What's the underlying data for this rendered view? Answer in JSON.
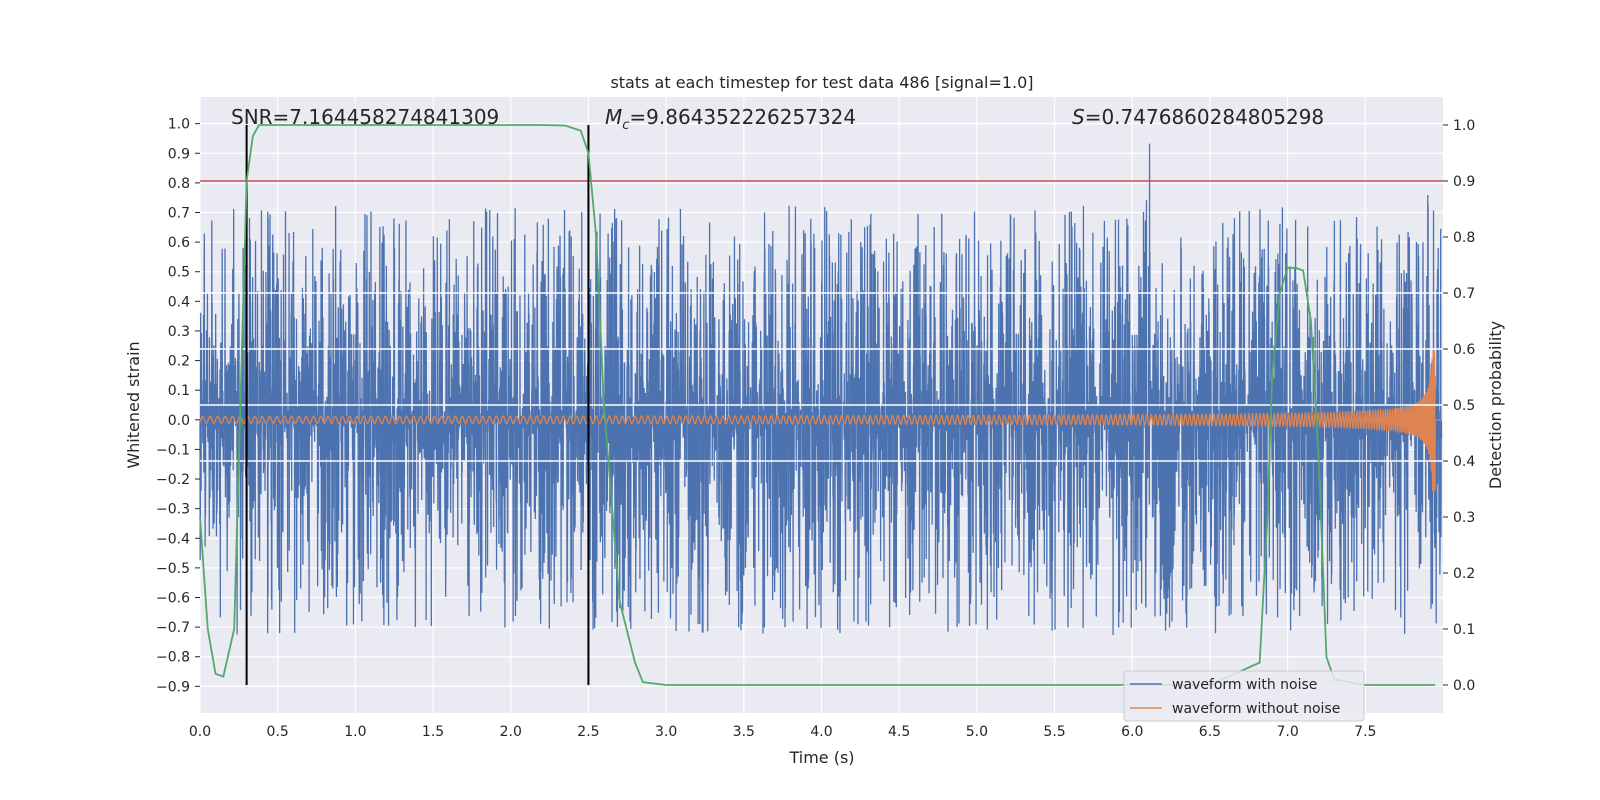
{
  "chart_data": {
    "type": "line",
    "title": "stats at each timestep for test data 486 [signal=1.0]",
    "xlabel": "Time (s)",
    "ylabel_left": "Whitened strain",
    "ylabel_right": "Detection probability",
    "xlim": [
      0.0,
      8.0
    ],
    "ylim_left": [
      -0.99,
      1.09
    ],
    "ylim_right": [
      -0.05,
      1.05
    ],
    "x_ticks": [
      "0.0",
      "0.5",
      "1.0",
      "1.5",
      "2.0",
      "2.5",
      "3.0",
      "3.5",
      "4.0",
      "4.5",
      "5.0",
      "5.5",
      "6.0",
      "6.5",
      "7.0",
      "7.5"
    ],
    "y_left_ticks": [
      "1.0",
      "0.9",
      "0.8",
      "0.7",
      "0.6",
      "0.5",
      "0.4",
      "0.3",
      "0.2",
      "0.1",
      "0.0",
      "-0.1",
      "-0.2",
      "-0.3",
      "-0.4",
      "-0.5",
      "-0.6",
      "-0.7",
      "-0.8",
      "-0.9"
    ],
    "y_right_ticks": [
      "1.0",
      "0.9",
      "0.8",
      "0.7",
      "0.6",
      "0.5",
      "0.4",
      "0.3",
      "0.2",
      "0.1",
      "0.0"
    ],
    "grid": true,
    "annotations": {
      "snr": "SNR=7.164458274841309",
      "mc_symbol": "M",
      "mc_sub": "c",
      "mc_value": "=9.864352226257324",
      "s_symbol": "S",
      "s_value": "=0.7476860284805298"
    },
    "threshold_probability": 0.9,
    "vertical_lines_s": [
      0.3,
      2.5
    ],
    "legend": {
      "position": "lower-right",
      "entries": [
        "waveform with noise",
        "waveform without noise"
      ]
    },
    "series": [
      {
        "name": "waveform with noise",
        "color": "#4c72b0",
        "axis": "left",
        "description": "whitened noisy strain, amplitude mostly within about ±0.6 with peaks near ±0.95"
      },
      {
        "name": "waveform without noise",
        "color": "#dd8452",
        "axis": "left",
        "description": "chirp signal, amplitude growing from ~0.01 to ~0.24 before merger near 7.95 s"
      },
      {
        "name": "detection probability",
        "color": "#55a868",
        "axis": "right",
        "x": [
          0.0,
          0.05,
          0.1,
          0.15,
          0.22,
          0.27,
          0.3,
          0.34,
          0.38,
          0.45,
          0.6,
          1.0,
          1.5,
          2.0,
          2.2,
          2.35,
          2.45,
          2.5,
          2.55,
          2.6,
          2.7,
          2.8,
          2.85,
          3.0,
          4.0,
          5.0,
          6.0,
          6.5,
          6.82,
          6.87,
          6.9,
          6.95,
          7.0,
          7.05,
          7.1,
          7.15,
          7.2,
          7.25,
          7.3,
          7.5,
          7.95
        ],
        "y": [
          0.3,
          0.1,
          0.02,
          0.015,
          0.1,
          0.6,
          0.9,
          0.98,
          1.0,
          1.0,
          1.0,
          1.0,
          1.0,
          1.0,
          1.0,
          0.999,
          0.99,
          0.95,
          0.8,
          0.5,
          0.15,
          0.04,
          0.005,
          0.0,
          0.0,
          0.0,
          0.0,
          0.0,
          0.04,
          0.3,
          0.55,
          0.7,
          0.745,
          0.745,
          0.74,
          0.65,
          0.4,
          0.05,
          0.01,
          0.0,
          0.0
        ]
      }
    ]
  },
  "colors": {
    "plot_background": "#eaeaf2",
    "grid": "#ffffff",
    "threshold_line": "#c44e52",
    "vertical_line": "#000000"
  }
}
